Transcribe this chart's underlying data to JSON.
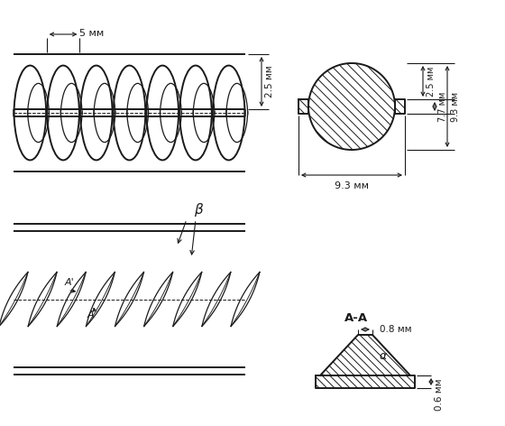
{
  "background_color": "#ffffff",
  "line_color": "#1a1a1a",
  "annotations": {
    "dim_5mm": "5 мм",
    "dim_2_5mm": "2.5 мм",
    "dim_9_3mm": "9.3 мм",
    "dim_2_5mm_r": "2.5 мм",
    "dim_7_7mm": "7.7 мм",
    "dim_9_3mm_r": "9.3 мм",
    "label_AA": "А-А",
    "label_beta": "β",
    "label_alpha": "α",
    "label_A": "А",
    "label_Aprime": "А'",
    "dim_0_8mm": "0.8 мм",
    "dim_0_6mm": "0.6 мм"
  }
}
